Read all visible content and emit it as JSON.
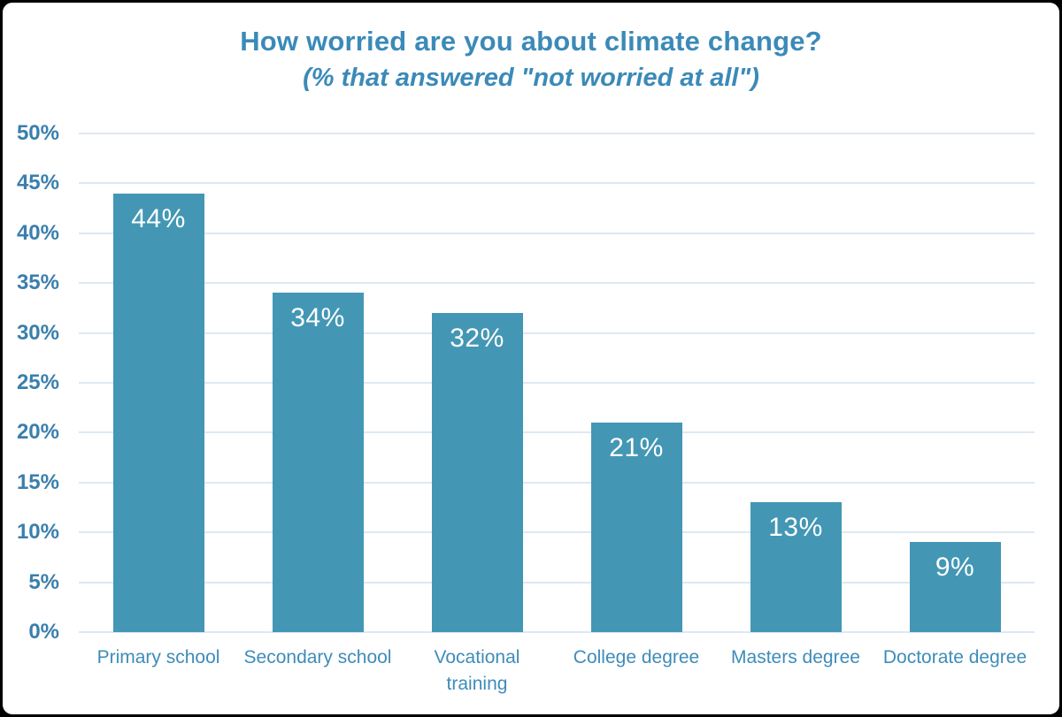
{
  "title": "How worried are you about climate change?",
  "subtitle": "(% that answered \"not worried at all\")",
  "colors": {
    "bar_fill": "#4397b4",
    "title_text": "#3b8ab8",
    "axis_label_text": "#3a7fad",
    "category_label_text": "#3e8cb8",
    "gridline": "#dde8f2",
    "data_label_text": "#ffffff",
    "frame_border": "#000000",
    "background": "#ffffff"
  },
  "chart_data": {
    "type": "bar",
    "title": "How worried are you about climate change?",
    "subtitle": "(% that answered \"not worried at all\")",
    "categories": [
      "Primary school",
      "Secondary school",
      "Vocational training",
      "College degree",
      "Masters degree",
      "Doctorate degree"
    ],
    "values": [
      44,
      34,
      32,
      21,
      13,
      9
    ],
    "value_labels": [
      "44%",
      "34%",
      "32%",
      "21%",
      "13%",
      "9%"
    ],
    "category_display_lines": [
      [
        "Primary school"
      ],
      [
        "Secondary school"
      ],
      [
        "Vocational",
        "training"
      ],
      [
        "College degree"
      ],
      [
        "Masters degree"
      ],
      [
        "Doctorate degree"
      ]
    ],
    "xlabel": "",
    "ylabel": "",
    "ylim": [
      0,
      50
    ],
    "ytick_step": 5,
    "ytick_labels": [
      "0%",
      "5%",
      "10%",
      "15%",
      "20%",
      "25%",
      "30%",
      "35%",
      "40%",
      "45%",
      "50%"
    ],
    "grid": "horizontal gridlines on",
    "legend": "none",
    "data_label_position": "inside top of bar"
  }
}
